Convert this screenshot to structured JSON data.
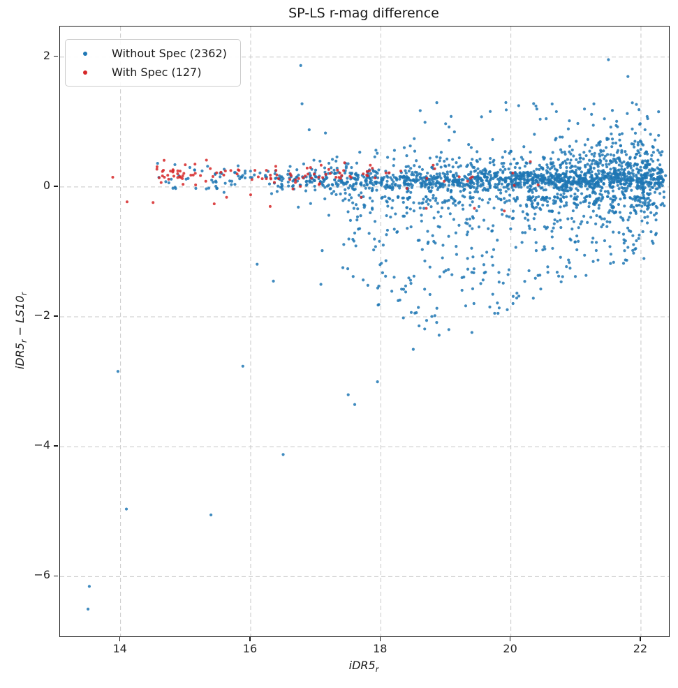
{
  "chart_data": {
    "type": "scatter",
    "title": "SP-LS r-mag difference",
    "xlabel": "iDR5_r",
    "ylabel": "iDR5_r − LS10_r",
    "xlim": [
      13.07,
      22.43
    ],
    "ylim": [
      -6.92,
      2.47
    ],
    "xticks": [
      14,
      16,
      18,
      20,
      22
    ],
    "yticks": [
      2,
      0,
      -2,
      -4,
      -6
    ],
    "grid": {
      "on": true,
      "color": "#c8c8c8",
      "dash": [
        6,
        4
      ]
    },
    "legend": {
      "position": "upper-left"
    },
    "seed": 7,
    "marker_alpha": 0.85,
    "series": [
      {
        "name": "Without Spec (2362)",
        "color": "#1f77b4",
        "count": 2362,
        "marker_radius": 2.1,
        "clusters": [
          {
            "count": 55,
            "x": {
              "type": "pow",
              "min": 14.55,
              "max": 16.2,
              "exp": 1.0
            },
            "y": {
              "type": "gauss",
              "mean": 0.13,
              "sd": 0.1,
              "min": -0.25,
              "max": 0.42
            }
          },
          {
            "count": 1120,
            "x": {
              "type": "pow",
              "min": 16.2,
              "max": 22.36,
              "exp": 0.72
            },
            "y": {
              "type": "gauss",
              "mean": 0.11,
              "sd": 0.085,
              "min": -0.18,
              "max": 0.46
            }
          },
          {
            "count": 300,
            "x": {
              "type": "pow",
              "min": 16.5,
              "max": 22.36,
              "exp": 0.7
            },
            "y": {
              "type": "gauss",
              "mean": 0.03,
              "sd": 0.26,
              "min": -0.8,
              "max": 0.9
            }
          },
          {
            "count": 150,
            "x": {
              "type": "pow",
              "min": 18.0,
              "max": 22.36,
              "exp": 0.6
            },
            "y": {
              "type": "pow",
              "min": 0.3,
              "max": 1.3,
              "exp": 2.2
            }
          },
          {
            "count": 230,
            "x": {
              "type": "gauss",
              "mean": 21.7,
              "sd": 0.55,
              "min": 20.3,
              "max": 22.4
            },
            "y": {
              "type": "gauss",
              "mean": 0.22,
              "sd": 0.38,
              "min": -0.85,
              "max": 1.1
            }
          },
          {
            "count": 480,
            "x": {
              "type": "pow",
              "min": 17.4,
              "max": 22.25,
              "exp": 0.8
            },
            "y": {
              "type": "wedge",
              "top": -0.15,
              "exp": 1.9,
              "env": [
                [
                  17.4,
                  -1.35
                ],
                [
                  18.0,
                  -2.1
                ],
                [
                  18.6,
                  -2.3
                ],
                [
                  19.5,
                  -2.25
                ],
                [
                  20.0,
                  -1.95
                ],
                [
                  20.6,
                  -1.6
                ],
                [
                  21.2,
                  -1.35
                ],
                [
                  22.25,
                  -1.05
                ]
              ]
            }
          }
        ],
        "points": [
          [
            13.5,
            -6.5
          ],
          [
            13.52,
            -6.15
          ],
          [
            14.09,
            -4.96
          ],
          [
            15.39,
            -5.05
          ],
          [
            16.5,
            -4.12
          ],
          [
            13.96,
            -2.84
          ],
          [
            15.88,
            -2.76
          ],
          [
            17.5,
            -3.2
          ],
          [
            17.6,
            -3.35
          ],
          [
            17.95,
            -3.0
          ],
          [
            18.5,
            -2.5
          ],
          [
            16.1,
            -1.19
          ],
          [
            16.35,
            -1.45
          ],
          [
            17.1,
            -0.98
          ],
          [
            17.08,
            -1.5
          ],
          [
            17.6,
            -0.71
          ],
          [
            16.77,
            1.87
          ],
          [
            16.79,
            1.28
          ],
          [
            21.5,
            1.96
          ],
          [
            21.8,
            1.7
          ],
          [
            21.93,
            1.27
          ],
          [
            21.97,
            1.19
          ],
          [
            19.55,
            1.08
          ],
          [
            20.4,
            1.2
          ],
          [
            20.7,
            1.16
          ],
          [
            16.9,
            0.88
          ],
          [
            17.15,
            0.83
          ]
        ]
      },
      {
        "name": "With Spec (127)",
        "color": "#d62728",
        "count": 127,
        "marker_radius": 2.0,
        "clusters": [
          {
            "count": 98,
            "x": {
              "type": "pow",
              "min": 14.55,
              "max": 17.9,
              "exp": 1.25
            },
            "y": {
              "type": "gauss",
              "mean": 0.19,
              "sd": 0.095,
              "min": 0.0,
              "max": 0.47
            }
          },
          {
            "count": 16,
            "x": {
              "type": "pow",
              "min": 17.9,
              "max": 20.45,
              "exp": 1.0
            },
            "y": {
              "type": "gauss",
              "mean": 0.13,
              "sd": 0.12,
              "min": -0.15,
              "max": 0.42
            }
          }
        ],
        "points": [
          [
            13.88,
            0.15
          ],
          [
            14.1,
            -0.23
          ],
          [
            14.5,
            -0.24
          ],
          [
            15.44,
            -0.26
          ],
          [
            15.63,
            -0.16
          ],
          [
            16.0,
            -0.12
          ],
          [
            16.3,
            -0.3
          ],
          [
            16.65,
            -0.03
          ],
          [
            17.7,
            -0.16
          ],
          [
            18.7,
            -0.33
          ],
          [
            19.44,
            -0.33
          ],
          [
            19.9,
            -0.37
          ],
          [
            20.3,
            0.39
          ]
        ]
      }
    ]
  }
}
